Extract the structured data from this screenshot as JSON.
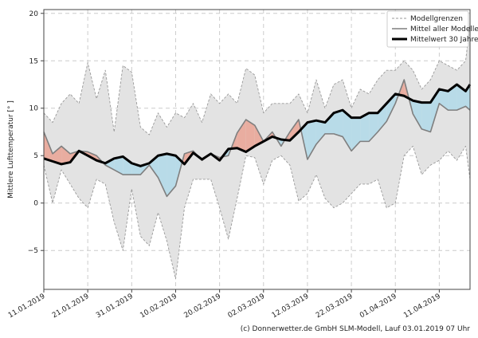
{
  "chart_data": {
    "type": "line",
    "title": "",
    "xlabel": "",
    "ylabel": "Mittlere Lufttemperatur [° ]",
    "ylim": [
      -9.1,
      20.4
    ],
    "xlim_days": [
      0,
      97
    ],
    "x_unit": "days since 11.01.2019",
    "grid": true,
    "legend_position": "top-right",
    "yticks": [
      -5,
      0,
      5,
      10,
      15,
      20
    ],
    "ytick_labels": [
      "−5",
      "0",
      "5",
      "10",
      "15",
      "20"
    ],
    "xticks": [
      0,
      10,
      20,
      30,
      40,
      50,
      60,
      70,
      80,
      90
    ],
    "xtick_labels": [
      "11.01.2019",
      "21.01.2019",
      "31.01.2019",
      "10.02.2019",
      "20.02.2019",
      "02.03.2019",
      "12.03.2019",
      "22.03.2019",
      "01.04.2019",
      "11.04.2019"
    ],
    "x": [
      0,
      2,
      4,
      6,
      8,
      10,
      12,
      14,
      16,
      18,
      20,
      22,
      24,
      26,
      28,
      30,
      32,
      34,
      36,
      38,
      40,
      42,
      44,
      46,
      48,
      50,
      52,
      54,
      56,
      58,
      60,
      62,
      64,
      66,
      68,
      70,
      72,
      74,
      76,
      78,
      80,
      82,
      84,
      86,
      88,
      90,
      92,
      94,
      96,
      97
    ],
    "series": [
      {
        "name": "Modellgrenzen (oben)",
        "style": "dashed",
        "values": [
          9.5,
          8.5,
          10.5,
          11.5,
          10.5,
          14.8,
          11,
          14,
          7.5,
          14.5,
          13.8,
          8,
          7.2,
          9.5,
          8,
          9.5,
          9,
          10.5,
          8.5,
          11.5,
          10.5,
          11.5,
          10.5,
          14.2,
          13.5,
          9.5,
          10.5,
          10.5,
          10.5,
          11.5,
          9.5,
          13,
          10,
          12.5,
          13,
          10,
          12,
          11.5,
          13,
          14,
          14,
          15,
          14,
          12,
          13,
          15,
          14.5,
          14,
          15,
          19
        ]
      },
      {
        "name": "Modellgrenzen (unten)",
        "style": "dashed",
        "values": [
          4,
          0,
          3.5,
          2,
          0.5,
          -0.5,
          2.5,
          2,
          -2,
          -5,
          1.5,
          -3.5,
          -4.5,
          -1,
          -4,
          -8,
          -0.5,
          2.5,
          2.5,
          2.5,
          -0.5,
          -3.8,
          0.5,
          5,
          4.8,
          2,
          4.5,
          5,
          4,
          0.2,
          1,
          3,
          0.5,
          -0.5,
          0,
          1,
          2,
          2,
          2.5,
          -0.5,
          0,
          5,
          6,
          3,
          4,
          4.5,
          5.5,
          4.5,
          6,
          2.5
        ]
      },
      {
        "name": "Mittel aller Modelle",
        "style": "solid-gray",
        "values": [
          7.5,
          5.2,
          6.0,
          5.2,
          5.5,
          5.4,
          5.0,
          4.0,
          3.5,
          3.0,
          3.0,
          3.0,
          4.0,
          2.7,
          0.7,
          1.8,
          5.2,
          5.5,
          4.5,
          5.2,
          4.8,
          5.0,
          7.4,
          8.8,
          8.2,
          6.5,
          7.5,
          6.0,
          7.5,
          8.8,
          4.6,
          6.2,
          7.3,
          7.3,
          7.0,
          5.5,
          6.5,
          6.5,
          7.5,
          8.6,
          10.5,
          13.0,
          9.4,
          7.8,
          7.5,
          10.5,
          9.8,
          9.8,
          10.2,
          9.8
        ]
      },
      {
        "name": "Mittelwert 30 Jahre",
        "style": "solid-black",
        "values": [
          4.7,
          4.4,
          4.1,
          4.3,
          5.5,
          5.0,
          4.5,
          4.2,
          4.7,
          4.9,
          4.2,
          3.9,
          4.2,
          5.0,
          5.2,
          5.0,
          4.1,
          5.3,
          4.6,
          5.2,
          4.5,
          5.7,
          5.8,
          5.4,
          6.0,
          6.5,
          7.0,
          6.7,
          6.6,
          7.5,
          8.5,
          8.7,
          8.5,
          9.5,
          9.8,
          9.0,
          9.0,
          9.5,
          9.5,
          10.5,
          11.5,
          11.3,
          10.8,
          10.6,
          10.6,
          12.0,
          11.8,
          12.5,
          11.8,
          12.5
        ]
      }
    ],
    "legend": [
      "Modellgrenzen",
      "Mittel aller Modelle",
      "Mittelwert 30 Jahre"
    ],
    "colors": {
      "range_fill": "#e3e3e3",
      "bound": "#999999",
      "model": "#7f7f7f",
      "clim": "#000000",
      "warmer": "#e9ada0",
      "colder": "#b8dbe8",
      "grid": "#cccccc"
    }
  },
  "footer": {
    "copyright": "(c) Donnerwetter.de GmbH SLM-Modell, Lauf 03.01.2019 07 Uhr"
  }
}
